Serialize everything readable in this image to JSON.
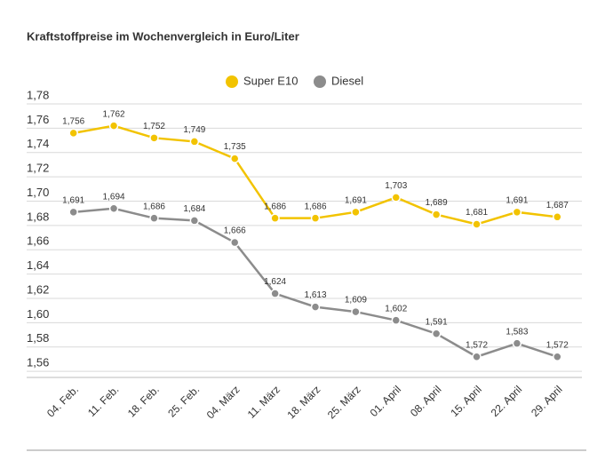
{
  "chart_data": {
    "type": "line",
    "title": "Kraftstoffpreise im Wochenvergleich in Euro/Liter",
    "categories": [
      "04. Feb.",
      "11. Feb.",
      "18. Feb.",
      "25. Feb.",
      "04. März",
      "11. März",
      "18. März",
      "25. März",
      "01. April",
      "08. April",
      "15. April",
      "22. April",
      "29. April"
    ],
    "series": [
      {
        "name": "Super E10",
        "color": "#f2c300",
        "values": [
          1.756,
          1.762,
          1.752,
          1.749,
          1.735,
          1.686,
          1.686,
          1.691,
          1.703,
          1.689,
          1.681,
          1.691,
          1.687
        ],
        "value_labels": [
          "1,756",
          "1,762",
          "1,752",
          "1,749",
          "1,735",
          "1,686",
          "1,686",
          "1,691",
          "1,703",
          "1,689",
          "1,681",
          "1,691",
          "1,687"
        ]
      },
      {
        "name": "Diesel",
        "color": "#8c8c8c",
        "values": [
          1.691,
          1.694,
          1.686,
          1.684,
          1.666,
          1.624,
          1.613,
          1.609,
          1.602,
          1.591,
          1.572,
          1.583,
          1.572
        ],
        "value_labels": [
          "1,691",
          "1,694",
          "1,686",
          "1,684",
          "1,666",
          "1,624",
          "1,613",
          "1,609",
          "1,602",
          "1,591",
          "1,572",
          "1,583",
          "1,572"
        ]
      }
    ],
    "ylim": [
      1.555,
      1.78
    ],
    "yticks": [
      {
        "value": 1.56,
        "label": "1,56"
      },
      {
        "value": 1.58,
        "label": "1,58"
      },
      {
        "value": 1.6,
        "label": "1,60"
      },
      {
        "value": 1.62,
        "label": "1,62"
      },
      {
        "value": 1.64,
        "label": "1,64"
      },
      {
        "value": 1.66,
        "label": "1,66"
      },
      {
        "value": 1.68,
        "label": "1,68"
      },
      {
        "value": 1.7,
        "label": "1,70"
      },
      {
        "value": 1.72,
        "label": "1,72"
      },
      {
        "value": 1.74,
        "label": "1,74"
      },
      {
        "value": 1.76,
        "label": "1,76"
      },
      {
        "value": 1.78,
        "label": "1,78"
      }
    ],
    "grid": true,
    "legend": "top"
  }
}
